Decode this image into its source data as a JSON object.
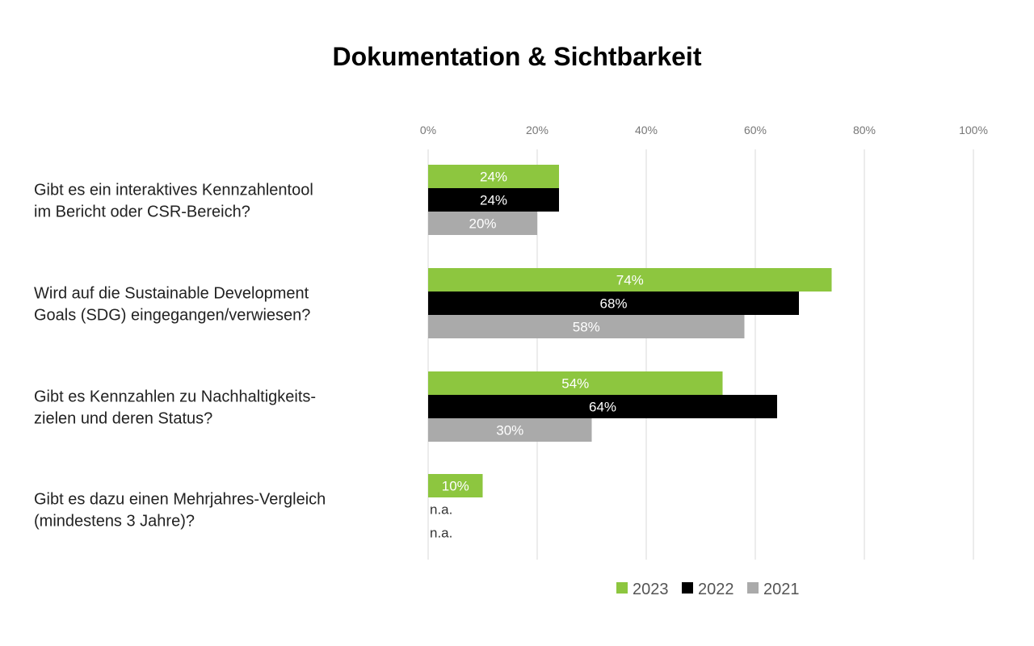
{
  "colors": {
    "s2023": "#8dc63f",
    "s2022": "#000000",
    "s2021": "#aaaaaa",
    "grid": "#d9d9d9"
  },
  "chart_data": {
    "type": "bar",
    "orientation": "horizontal",
    "title": "Dokumentation & Sichtbarkeit",
    "categories": [
      [
        "Gibt es ein interaktives Kennzahlentool",
        "im Bericht oder CSR-Bereich?"
      ],
      [
        "Wird auf die Sustainable Development",
        "Goals (SDG) eingegangen/verwiesen?"
      ],
      [
        "Gibt es Kennzahlen zu Nachhaltigkeits-",
        "zielen und deren Status?"
      ],
      [
        "Gibt es dazu einen Mehrjahres-Vergleich",
        "(mindestens 3 Jahre)?"
      ]
    ],
    "series": [
      {
        "name": "2023",
        "color": "#8dc63f",
        "values": [
          24,
          74,
          54,
          10
        ],
        "labels": [
          "24%",
          "74%",
          "54%",
          "10%"
        ]
      },
      {
        "name": "2022",
        "color": "#000000",
        "values": [
          24,
          68,
          64,
          null
        ],
        "labels": [
          "24%",
          "68%",
          "64%",
          "n.a."
        ]
      },
      {
        "name": "2021",
        "color": "#aaaaaa",
        "values": [
          20,
          58,
          30,
          null
        ],
        "labels": [
          "20%",
          "58%",
          "30%",
          "n.a."
        ]
      }
    ],
    "xlim": [
      0,
      100
    ],
    "ticks": [
      "0%",
      "20%",
      "40%",
      "60%",
      "80%",
      "100%"
    ],
    "grid": true,
    "legend": "bottom"
  }
}
